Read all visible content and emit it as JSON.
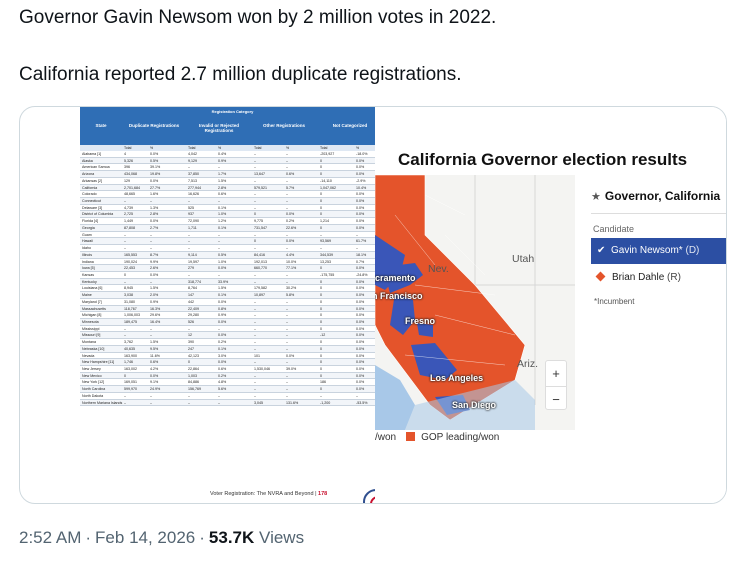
{
  "tweet": {
    "line1": "Governor Gavin Newsom won by 2 million votes in 2022.",
    "line2": "California reported 2.7 million duplicate registrations."
  },
  "table_image": {
    "headers": [
      "State",
      "Duplicate Registrations",
      "Invalid or Rejected Registrations",
      "Other Registrations",
      "Not Categorized"
    ],
    "group_title": "Registration Category",
    "subheaders": [
      "Total",
      "%",
      "Total",
      "%",
      "Total",
      "%",
      "Total",
      "%"
    ],
    "rows": [
      [
        "Alabama [1]",
        "4",
        "0.0%",
        "4,042",
        "0.4%",
        "–",
        "–",
        "-203,927",
        "-18.0%"
      ],
      [
        "Alaska",
        "5,326",
        "0.5%",
        "9,129",
        "0.9%",
        "–",
        "–",
        "0",
        "0.0%"
      ],
      [
        "American Samoa",
        "396",
        "39.1%",
        "–",
        "–",
        "–",
        "–",
        "0",
        "0.0%"
      ],
      [
        "Arizona",
        "434,068",
        "19.8%",
        "37,850",
        "1.7%",
        "13,647",
        "0.6%",
        "0",
        "0.0%"
      ],
      [
        "Arkansas [2]",
        "129",
        "0.0%",
        "7,513",
        "1.5%",
        "–",
        "–",
        "-14,110",
        "-2.9%"
      ],
      [
        "California",
        "2,701,684",
        "27.7%",
        "277,944",
        "2.8%",
        "579,521",
        "5.7%",
        "1,047,062",
        "10.4%"
      ],
      [
        "Colorado",
        "48,665",
        "1.6%",
        "16,626",
        "0.6%",
        "–",
        "–",
        "0",
        "0.0%"
      ],
      [
        "Connecticut",
        "–",
        "–",
        "–",
        "–",
        "–",
        "–",
        "0",
        "0.0%"
      ],
      [
        "Delaware [3]",
        "4,739",
        "1.3%",
        "525",
        "0.1%",
        "–",
        "–",
        "0",
        "0.0%"
      ],
      [
        "District of Columbia",
        "2,725",
        "2.8%",
        "937",
        "1.0%",
        "0",
        "0.0%",
        "0",
        "0.0%"
      ],
      [
        "Florida [4]",
        "1,449",
        "0.0%",
        "72,090",
        "1.2%",
        "9,775",
        "0.2%",
        "1,214",
        "0.0%"
      ],
      [
        "Georgia",
        "87,808",
        "2.7%",
        "1,711",
        "0.1%",
        "731,547",
        "22.6%",
        "0",
        "0.0%"
      ],
      [
        "Guam",
        "–",
        "–",
        "–",
        "–",
        "–",
        "–",
        "–",
        "–"
      ],
      [
        "Hawaii",
        "–",
        "–",
        "–",
        "–",
        "0",
        "0.0%",
        "93,569",
        "61.7%"
      ],
      [
        "Idaho",
        "–",
        "–",
        "–",
        "–",
        "–",
        "–",
        "–",
        "–"
      ],
      [
        "Illinois",
        "165,553",
        "8.7%",
        "9,114",
        "0.5%",
        "84,416",
        "4.4%",
        "344,539",
        "18.1%"
      ],
      [
        "Indiana",
        "190,024",
        "9.9%",
        "19,597",
        "1.0%",
        "192,013",
        "10.0%",
        "13,253",
        "0.7%"
      ],
      [
        "Iowa [5]",
        "22,453",
        "2.6%",
        "279",
        "0.0%",
        "660,770",
        "77.1%",
        "0",
        "0.0%"
      ],
      [
        "Kansas",
        "0",
        "0.0%",
        "–",
        "–",
        "–",
        "–",
        "-175,755",
        "-24.8%"
      ],
      [
        "Kentucky",
        "–",
        "–",
        "318,774",
        "33.9%",
        "–",
        "–",
        "0",
        "0.0%"
      ],
      [
        "Louisiana [6]",
        "8,945",
        "1.5%",
        "8,764",
        "1.5%",
        "179,582",
        "30.2%",
        "0",
        "0.0%"
      ],
      [
        "Maine",
        "3,038",
        "2.0%",
        "147",
        "0.1%",
        "10,897",
        "5.8%",
        "0",
        "0.0%"
      ],
      [
        "Maryland [7]",
        "31,080",
        "0.9%",
        "442",
        "0.0%",
        "–",
        "–",
        "0",
        "0.0%"
      ],
      [
        "Massachusetts",
        "118,767",
        "16.3%",
        "22,409",
        "0.8%",
        "–",
        "–",
        "0",
        "0.0%"
      ],
      [
        "Michigan [8]",
        "1,006,003",
        "29.6%",
        "29,280",
        "0.9%",
        "–",
        "–",
        "0",
        "0.0%"
      ],
      [
        "Minnesota",
        "189,475",
        "16.4%",
        "526",
        "0.0%",
        "–",
        "–",
        "0",
        "0.0%"
      ],
      [
        "Mississippi",
        "–",
        "–",
        "–",
        "–",
        "–",
        "–",
        "0",
        "0.0%"
      ],
      [
        "Missouri [9]",
        "–",
        "–",
        "12",
        "0.0%",
        "–",
        "–",
        "-12",
        "0.0%"
      ],
      [
        "Montana",
        "3,762",
        "1.5%",
        "390",
        "0.2%",
        "–",
        "–",
        "0",
        "0.0%"
      ],
      [
        "Nebraska [10]",
        "40,635",
        "9.5%",
        "247",
        "0.1%",
        "–",
        "–",
        "0",
        "0.0%"
      ],
      [
        "Nevada",
        "163,900",
        "11.6%",
        "42,123",
        "3.0%",
        "101",
        "0.0%",
        "0",
        "0.0%"
      ],
      [
        "New Hampshire [11]",
        "1,746",
        "0.6%",
        "0",
        "0.0%",
        "–",
        "–",
        "0",
        "0.0%"
      ],
      [
        "New Jersey",
        "163,002",
        "4.2%",
        "22,864",
        "0.6%",
        "1,530,046",
        "39.0%",
        "0",
        "0.0%"
      ],
      [
        "New Mexico",
        "0",
        "0.0%",
        "1,003",
        "0.2%",
        "–",
        "–",
        "0",
        "0.0%"
      ],
      [
        "New York [12]",
        "169,051",
        "9.1%",
        "84,886",
        "4.8%",
        "–",
        "–",
        "186",
        "0.0%"
      ],
      [
        "North Carolina",
        "599,970",
        "24.9%",
        "156,769",
        "5.6%",
        "–",
        "–",
        "0",
        "0.0%"
      ],
      [
        "North Dakota",
        "–",
        "–",
        "–",
        "–",
        "–",
        "–",
        "–",
        "–"
      ],
      [
        "Northern Mariana Islands",
        "–",
        "–",
        "–",
        "–",
        "3,045",
        "131.6%",
        "-1,200",
        "-53.5%"
      ]
    ],
    "footer_text": "Voter Registration: The NVRA and Beyond",
    "footer_page": "178"
  },
  "map_image": {
    "title": "California Governor election results",
    "state_labels": [
      "Nev.",
      "Utah",
      "Ariz."
    ],
    "cities": [
      "Sacramento",
      "San Francisco",
      "Fresno",
      "Los Angeles",
      "San Diego"
    ],
    "zoom_in": "+",
    "zoom_out": "−",
    "legend_dem": "/won",
    "legend_gop": "GOP leading/won",
    "race_title": "Governor, California",
    "candidate_label": "Candidate",
    "candidates": [
      {
        "name": "Gavin Newsom*",
        "party": "(D)",
        "color": "#2c4fa3"
      },
      {
        "name": "Brian Dahle",
        "party": "(R)",
        "color": "#e4542b"
      }
    ],
    "incumbent_note": "*Incumbent",
    "colors": {
      "dem": "#3a56b8",
      "gop": "#e4542b"
    }
  },
  "meta": {
    "time": "2:52 AM",
    "date": "Feb 14, 2026",
    "views_count": "53.7K",
    "views_label": "Views"
  }
}
